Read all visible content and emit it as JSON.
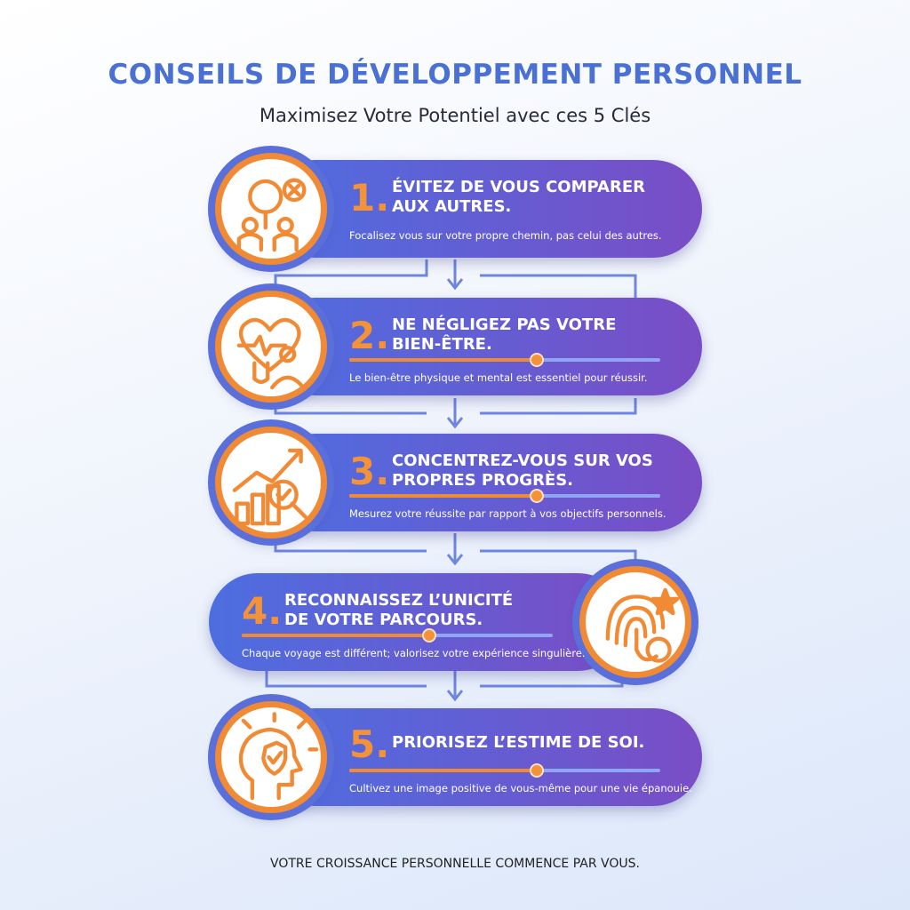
{
  "header": {
    "title": "CONSEILS DE DÉVELOPPEMENT PERSONNEL",
    "subtitle": "Maximisez Votre Potentiel avec ces 5 Clés"
  },
  "items": [
    {
      "number": "1.",
      "title_lines": [
        "ÉVITEZ DE VOUS COMPARER",
        "AUX AUTRES."
      ],
      "description": "Focalisez vous sur votre propre chemin, pas celui des autres."
    },
    {
      "number": "2.",
      "title_lines": [
        "NE NÉGLIGEZ PAS VOTRE",
        "BIEN-ÊTRE."
      ],
      "description": "Le bien-être physique et mental est essentiel pour réussir."
    },
    {
      "number": "3.",
      "title_lines": [
        "CONCENTREZ-VOUS SUR VOS",
        "PROPRES PROGRÈS."
      ],
      "description": "Mesurez votre réussite par rapport à vos objectifs personnels."
    },
    {
      "number": "4.",
      "title_lines": [
        "RECONNAISSEZ L’UNICITÉ",
        "DE VOTRE PARCOURS."
      ],
      "description": "Chaque voyage est différent; valorisez votre expérience singulière."
    },
    {
      "number": "5.",
      "title_lines": [
        "PRIORISEZ L’ESTIME DE SOI."
      ],
      "description": "Cultivez une image positive de vous-même pour une vie épanouie."
    }
  ],
  "footer": "VOTRE CROISSANCE PERSONNELLE COMMENCE PAR VOUS."
}
